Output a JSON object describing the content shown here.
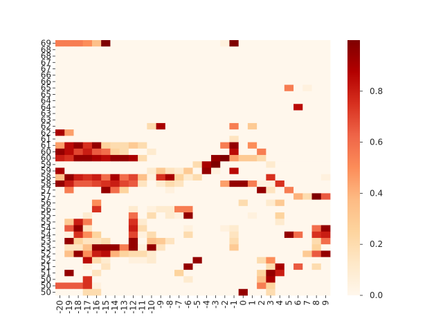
{
  "chart_data": {
    "type": "heatmap",
    "title": "",
    "xlabel": "",
    "ylabel": "",
    "x_tick_labels": [
      "-20",
      "-19",
      "-18",
      "-17",
      "-16",
      "-15",
      "-14",
      "-13",
      "-12",
      "-11",
      "-10",
      "-9",
      "-8",
      "-7",
      "-6",
      "-5",
      "-4",
      "-3",
      "-2",
      "-1",
      "0",
      "1",
      "2",
      "3",
      "4",
      "5",
      "6",
      "7",
      "8",
      "9"
    ],
    "y_tick_labels": [
      "69",
      "68",
      "68",
      "67",
      "67",
      "66",
      "66",
      "65",
      "65",
      "64",
      "64",
      "63",
      "63",
      "62",
      "62",
      "61",
      "61",
      "60",
      "60",
      "59",
      "59",
      "58",
      "58",
      "57",
      "57",
      "56",
      "56",
      "55",
      "55",
      "54",
      "54",
      "53",
      "53",
      "52",
      "52",
      "51",
      "51",
      "50",
      "50",
      "50"
    ],
    "colormap": "OrRd",
    "color_stops": [
      "#fff7ec",
      "#fee8c8",
      "#fdd49e",
      "#fdbb84",
      "#fc8d59",
      "#ef6548",
      "#d7301f",
      "#b30000",
      "#7f0000"
    ],
    "colorbar": {
      "range": [
        0.0,
        1.0
      ],
      "tick_labels": [
        "0.0",
        "0.2",
        "0.4",
        "0.6",
        "0.8"
      ],
      "ticks": [
        0.0,
        0.2,
        0.4,
        0.6,
        0.8
      ]
    },
    "values": [
      [
        0.55,
        0.55,
        0.55,
        0.5,
        0.35,
        1.0,
        0,
        0,
        0,
        0,
        0,
        0,
        0,
        0,
        0,
        0,
        0,
        0,
        0.05,
        1.0,
        0,
        0,
        0,
        0,
        0,
        0,
        0,
        0,
        0,
        0
      ],
      [
        0,
        0,
        0,
        0,
        0,
        0,
        0,
        0,
        0,
        0,
        0,
        0,
        0,
        0,
        0,
        0,
        0,
        0,
        0,
        0,
        0,
        0,
        0,
        0,
        0,
        0,
        0,
        0,
        0,
        0
      ],
      [
        0,
        0,
        0,
        0,
        0,
        0,
        0,
        0,
        0,
        0,
        0,
        0,
        0,
        0,
        0,
        0,
        0,
        0,
        0,
        0,
        0,
        0,
        0,
        0,
        0,
        0,
        0,
        0,
        0,
        0
      ],
      [
        0,
        0,
        0,
        0,
        0,
        0,
        0,
        0,
        0,
        0,
        0,
        0,
        0,
        0,
        0,
        0,
        0,
        0,
        0,
        0,
        0,
        0,
        0,
        0,
        0,
        0,
        0,
        0,
        0,
        0
      ],
      [
        0,
        0,
        0,
        0,
        0,
        0,
        0,
        0,
        0,
        0,
        0,
        0,
        0,
        0,
        0,
        0,
        0,
        0,
        0,
        0,
        0,
        0,
        0,
        0,
        0,
        0,
        0,
        0,
        0,
        0
      ],
      [
        0,
        0,
        0,
        0,
        0,
        0,
        0,
        0,
        0,
        0,
        0,
        0,
        0,
        0,
        0,
        0,
        0,
        0,
        0,
        0,
        0,
        0,
        0,
        0,
        0,
        0,
        0,
        0,
        0,
        0
      ],
      [
        0,
        0,
        0,
        0,
        0,
        0,
        0,
        0,
        0,
        0,
        0,
        0,
        0,
        0,
        0,
        0,
        0,
        0,
        0,
        0,
        0,
        0,
        0,
        0,
        0,
        0,
        0,
        0,
        0,
        0
      ],
      [
        0,
        0,
        0,
        0,
        0,
        0,
        0,
        0,
        0,
        0,
        0,
        0,
        0,
        0,
        0,
        0,
        0,
        0,
        0,
        0,
        0,
        0,
        0,
        0,
        0,
        0.55,
        0,
        0.05,
        0,
        0
      ],
      [
        0,
        0,
        0,
        0,
        0,
        0,
        0,
        0,
        0,
        0,
        0,
        0,
        0,
        0,
        0,
        0,
        0,
        0,
        0,
        0,
        0,
        0,
        0,
        0,
        0,
        0,
        0,
        0,
        0,
        0
      ],
      [
        0,
        0,
        0,
        0,
        0,
        0,
        0,
        0,
        0,
        0,
        0,
        0,
        0,
        0,
        0,
        0,
        0,
        0,
        0,
        0,
        0,
        0,
        0,
        0,
        0,
        0,
        0,
        0,
        0,
        0
      ],
      [
        0,
        0,
        0,
        0,
        0,
        0,
        0,
        0,
        0,
        0,
        0,
        0,
        0,
        0,
        0,
        0,
        0,
        0,
        0,
        0,
        0,
        0,
        0,
        0,
        0,
        0,
        0.85,
        0,
        0,
        0
      ],
      [
        0,
        0,
        0,
        0,
        0,
        0,
        0,
        0,
        0,
        0,
        0,
        0,
        0,
        0,
        0,
        0,
        0,
        0,
        0,
        0,
        0,
        0,
        0,
        0,
        0,
        0,
        0,
        0,
        0,
        0
      ],
      [
        0,
        0,
        0,
        0,
        0,
        0,
        0,
        0,
        0,
        0,
        0,
        0,
        0,
        0,
        0,
        0,
        0,
        0,
        0,
        0,
        0,
        0,
        0,
        0,
        0,
        0,
        0,
        0,
        0,
        0
      ],
      [
        0,
        0,
        0,
        0,
        0,
        0,
        0,
        0,
        0,
        0,
        0.2,
        0.9,
        0,
        0,
        0,
        0,
        0,
        0,
        0,
        0.55,
        0,
        0.3,
        0,
        0,
        0,
        0,
        0,
        0,
        0,
        0
      ],
      [
        0.9,
        0.45,
        0,
        0,
        0,
        0,
        0,
        0,
        0,
        0,
        0,
        0,
        0,
        0,
        0,
        0,
        0,
        0,
        0,
        0,
        0,
        0,
        0,
        0,
        0,
        0,
        0,
        0,
        0,
        0
      ],
      [
        0,
        0,
        0,
        0,
        0,
        0,
        0,
        0,
        0,
        0,
        0,
        0,
        0,
        0,
        0,
        0,
        0,
        0,
        0,
        0.15,
        0,
        0,
        0,
        0,
        0,
        0,
        0,
        0,
        0,
        0
      ],
      [
        0.45,
        0.85,
        0.95,
        0.75,
        0.95,
        0.25,
        0.2,
        0.2,
        0.3,
        0.2,
        0,
        0,
        0,
        0,
        0,
        0,
        0,
        0,
        0.55,
        0.95,
        0,
        0.5,
        0,
        0,
        0,
        0,
        0,
        0,
        0,
        0
      ],
      [
        0.95,
        0.85,
        0.7,
        0.8,
        0.65,
        0.6,
        0.25,
        0.2,
        0,
        0,
        0.1,
        0,
        0,
        0,
        0,
        0,
        0,
        0,
        0,
        0.85,
        0,
        0,
        0.55,
        0,
        0,
        0,
        0,
        0,
        0,
        0
      ],
      [
        0.8,
        0.75,
        0.95,
        0.95,
        0.9,
        0.85,
        0.95,
        0.95,
        0.9,
        0.2,
        0,
        0,
        0,
        0,
        0,
        0,
        0,
        0.95,
        1.0,
        0.45,
        0.3,
        0.3,
        0.2,
        0,
        0,
        0,
        0,
        0,
        0,
        0
      ],
      [
        0,
        0,
        0,
        0,
        0,
        0,
        0,
        0,
        0,
        0,
        0,
        0,
        0,
        0,
        0,
        0.2,
        0.9,
        1.0,
        0,
        0,
        0,
        0,
        0,
        0.1,
        0,
        0,
        0,
        0,
        0,
        0
      ],
      [
        0.9,
        0,
        0,
        0,
        0,
        0,
        0,
        0,
        0,
        0,
        0.1,
        0.3,
        0.15,
        0.1,
        0.3,
        0,
        0.95,
        0.05,
        0,
        0.85,
        0,
        0,
        0,
        0,
        0,
        0,
        0,
        0,
        0,
        0
      ],
      [
        0.35,
        0.95,
        0.8,
        0.75,
        0.8,
        0.6,
        0.9,
        0.6,
        0.7,
        0.35,
        0.05,
        0.75,
        0.9,
        0.25,
        0.1,
        0.2,
        0,
        0,
        0,
        0,
        0,
        0,
        0,
        0.75,
        0,
        0,
        0,
        0,
        0,
        0.05
      ],
      [
        0.95,
        0.8,
        0.65,
        0.65,
        0.7,
        0.75,
        0.8,
        0.7,
        0.65,
        0.15,
        0,
        0.1,
        0.2,
        0.15,
        0,
        0,
        0,
        0,
        0.45,
        0.95,
        0.95,
        0.55,
        0.05,
        0.05,
        0.75,
        0,
        0,
        0,
        0,
        0
      ],
      [
        0,
        0.55,
        0,
        0,
        0,
        0.95,
        0.6,
        0.25,
        0,
        0,
        0,
        0,
        0.05,
        0,
        0,
        0,
        0,
        0,
        0,
        0,
        0,
        0,
        0.95,
        0.15,
        0,
        0.55,
        0,
        0,
        0,
        0
      ],
      [
        0,
        0,
        0,
        0,
        0,
        0,
        0,
        0,
        0,
        0,
        0,
        0,
        0,
        0,
        0,
        0,
        0,
        0,
        0,
        0,
        0,
        0,
        0,
        0,
        0,
        0,
        0.4,
        0.2,
        1.0,
        0.65
      ],
      [
        0,
        0,
        0,
        0,
        0.5,
        0,
        0,
        0,
        0,
        0,
        0,
        0,
        0,
        0,
        0,
        0,
        0,
        0,
        0,
        0,
        0.2,
        0,
        0,
        0.1,
        0.3,
        0,
        0,
        0,
        0,
        0
      ],
      [
        0,
        0,
        0,
        0,
        0.75,
        0,
        0,
        0,
        0.1,
        0,
        0.05,
        0.1,
        0.1,
        0.55,
        0.55,
        0,
        0,
        0,
        0,
        0,
        0,
        0,
        0,
        0,
        0,
        0,
        0,
        0,
        0,
        0
      ],
      [
        0,
        0,
        0,
        0.1,
        0,
        0,
        0,
        0,
        0.6,
        0,
        0.2,
        0,
        0.1,
        0.05,
        0.95,
        0,
        0,
        0,
        0,
        0,
        0,
        0.05,
        0,
        0,
        0.25,
        0,
        0,
        0,
        0,
        0
      ],
      [
        0,
        0.3,
        0.8,
        0.55,
        0,
        0,
        0,
        0,
        0.75,
        0.1,
        0,
        0,
        0,
        0,
        0,
        0,
        0,
        0,
        0,
        0,
        0,
        0,
        0,
        0,
        0.1,
        0,
        0,
        0,
        0,
        0
      ],
      [
        0,
        0.65,
        0.95,
        0.15,
        0,
        0,
        0,
        0,
        0.8,
        0.2,
        0,
        0,
        0,
        0,
        0.05,
        0,
        0,
        0,
        0.05,
        0.1,
        0,
        0,
        0,
        0,
        0,
        0,
        0,
        0,
        0.6,
        0.95
      ],
      [
        0,
        0.05,
        0.75,
        0.5,
        0.25,
        0,
        0,
        0,
        0.7,
        0.05,
        0.2,
        0,
        0,
        0,
        0.2,
        0,
        0,
        0,
        0,
        0.15,
        0,
        0,
        0,
        0,
        0,
        0.95,
        0.6,
        0,
        0.75,
        0.8
      ],
      [
        0,
        0.95,
        0.25,
        0.15,
        0.15,
        0.2,
        0,
        0,
        0.95,
        0,
        0.35,
        0.3,
        0.15,
        0,
        0,
        0,
        0,
        0,
        0,
        0.2,
        0,
        0,
        0,
        0,
        0,
        0,
        0,
        0,
        0.2,
        0.6
      ],
      [
        0,
        0.15,
        0.15,
        0.35,
        0.95,
        0.95,
        0.95,
        0.55,
        0.95,
        0.05,
        0.95,
        0.15,
        0,
        0,
        0,
        0,
        0,
        0,
        0,
        0.3,
        0,
        0,
        0,
        0,
        0,
        0,
        0,
        0,
        0.25,
        0
      ],
      [
        0,
        0.35,
        0.95,
        0.5,
        0.8,
        0.85,
        0.4,
        0.25,
        0.2,
        0.2,
        0.1,
        0,
        0,
        0,
        0,
        0,
        0,
        0,
        0,
        0,
        0,
        0,
        0,
        0,
        0,
        0,
        0,
        0.3,
        0.65,
        0.95
      ],
      [
        0,
        0,
        0,
        0.85,
        0.2,
        0.1,
        0,
        0,
        0.05,
        0.05,
        0.1,
        0,
        0,
        0,
        0,
        0.95,
        0,
        0,
        0,
        0,
        0,
        0,
        0.2,
        0.5,
        0,
        0,
        0,
        0,
        0,
        0
      ],
      [
        0,
        0,
        0,
        0.05,
        0,
        0.15,
        0,
        0,
        0,
        0,
        0,
        0,
        0,
        0,
        0.95,
        0,
        0,
        0,
        0,
        0,
        0,
        0,
        0,
        0.2,
        0.9,
        0,
        0.65,
        0,
        0.2,
        0
      ],
      [
        0,
        0.95,
        0,
        0,
        0.15,
        0,
        0,
        0,
        0,
        0,
        0,
        0,
        0,
        0.25,
        0,
        0,
        0,
        0,
        0,
        0,
        0,
        0,
        0.25,
        0.95,
        0.8,
        0,
        0,
        0,
        0,
        0
      ],
      [
        0,
        0,
        0,
        0.75,
        0,
        0,
        0,
        0,
        0,
        0,
        0,
        0,
        0,
        0,
        0.1,
        0,
        0,
        0,
        0,
        0,
        0,
        0,
        0.35,
        0.9,
        0,
        0,
        0,
        0,
        0,
        0
      ],
      [
        0.65,
        0.65,
        0.65,
        0.75,
        0.05,
        0,
        0,
        0,
        0,
        0,
        0,
        0,
        0,
        0,
        0,
        0,
        0,
        0,
        0,
        0,
        0,
        0,
        0.55,
        0.25,
        0,
        0,
        0,
        0,
        0,
        0
      ],
      [
        0,
        0,
        0,
        0.2,
        0.2,
        0,
        0,
        0,
        0,
        0,
        0,
        0,
        0,
        0,
        0,
        0,
        0,
        0,
        0,
        0,
        0.95,
        0,
        0,
        0.2,
        0,
        0,
        0,
        0,
        0,
        0
      ]
    ]
  }
}
